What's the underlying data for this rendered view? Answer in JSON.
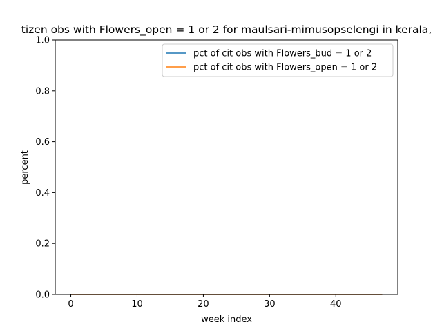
{
  "chart_data": {
    "type": "line",
    "title": "tizen obs with Flowers_open = 1 or 2 for maulsari-mimusopselengi in kerala,",
    "xlabel": "week index",
    "ylabel": "percent",
    "xlim": [
      -2.35,
      49.35
    ],
    "ylim": [
      0,
      1.0
    ],
    "x_ticks": [
      "0",
      "10",
      "20",
      "30",
      "40"
    ],
    "x_tick_values": [
      0,
      10,
      20,
      30,
      40
    ],
    "y_ticks": [
      "0.0",
      "0.2",
      "0.4",
      "0.6",
      "0.8",
      "1.0"
    ],
    "y_tick_values": [
      0.0,
      0.2,
      0.4,
      0.6,
      0.8,
      1.0
    ],
    "grid": false,
    "legend_position": "upper right",
    "x": [
      0,
      1,
      2,
      3,
      4,
      5,
      6,
      7,
      8,
      9,
      10,
      11,
      12,
      13,
      14,
      15,
      16,
      17,
      18,
      19,
      20,
      21,
      22,
      23,
      24,
      25,
      26,
      27,
      28,
      29,
      30,
      31,
      32,
      33,
      34,
      35,
      36,
      37,
      38,
      39,
      40,
      41,
      42,
      43,
      44,
      45,
      46,
      47
    ],
    "series": [
      {
        "name": "pct of cit obs with Flowers_bud = 1 or 2",
        "color": "#1f77b4",
        "values": [
          0,
          0,
          0,
          0,
          0,
          0,
          0,
          0,
          0,
          0,
          0,
          0,
          0,
          0,
          0,
          0,
          0,
          0,
          0,
          0,
          0,
          0,
          0,
          0,
          0,
          0,
          0,
          0,
          0,
          0,
          0,
          0,
          0,
          0,
          0,
          0,
          0,
          0,
          0,
          0,
          0,
          0,
          0,
          0,
          0,
          0,
          0,
          0
        ]
      },
      {
        "name": "pct of cit obs with Flowers_open = 1 or 2",
        "color": "#ff7f0e",
        "values": [
          0,
          0,
          0,
          0,
          0,
          0,
          0,
          0,
          0,
          0,
          0,
          0,
          0,
          0,
          0,
          0,
          0,
          0,
          0,
          0,
          0,
          0,
          0,
          0,
          0,
          0,
          0,
          0,
          0,
          0,
          0,
          0,
          0,
          0,
          0,
          0,
          0,
          0,
          0,
          0,
          0,
          0,
          0,
          0,
          0,
          0,
          0,
          0
        ]
      }
    ]
  }
}
